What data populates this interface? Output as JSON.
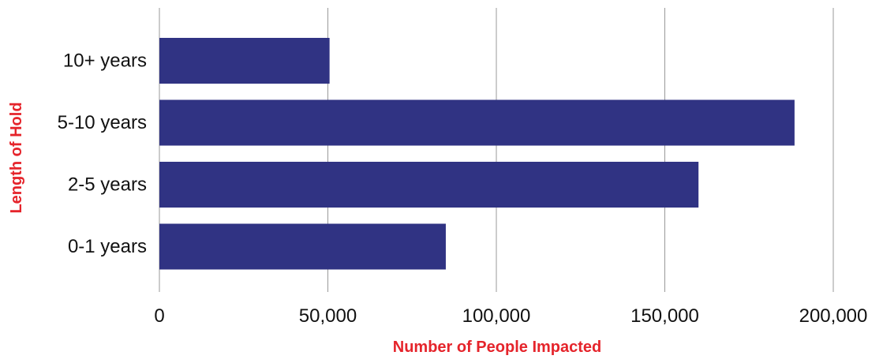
{
  "chart_data": {
    "type": "bar",
    "orientation": "horizontal",
    "categories": [
      "10+ years",
      "5-10 years",
      "2-5 years",
      "0-1 years"
    ],
    "values": [
      50500,
      188500,
      160000,
      85000
    ],
    "xlabel": "Number of People Impacted",
    "ylabel": "Length of Hold",
    "xlim": [
      0,
      200000
    ],
    "xticks": [
      0,
      50000,
      100000,
      150000,
      200000
    ],
    "xtick_labels": [
      "0",
      "50,000",
      "100,000",
      "150,000",
      "200,000"
    ],
    "grid": "vertical",
    "legend": "none",
    "colors": {
      "bar": "#303383",
      "axis_title": "#e5242b",
      "gridline": "#999999",
      "tick_text": "#111111"
    }
  }
}
